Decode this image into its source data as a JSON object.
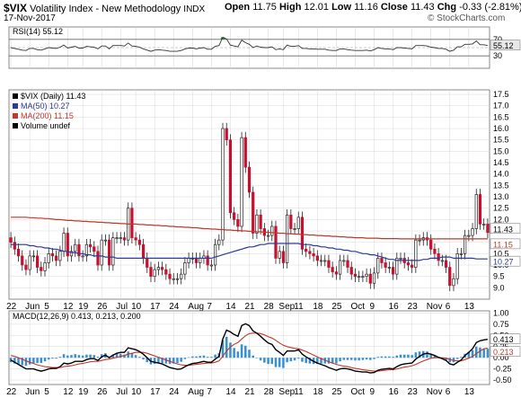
{
  "header": {
    "symbol": "$VIX",
    "name": "Volatility Index - New Methodology",
    "exchange": "INDX",
    "date": "17-Nov-2017",
    "open_label": "Open",
    "open": "11.75",
    "high_label": "High",
    "high": "12.01",
    "low_label": "Low",
    "low": "11.16",
    "close_label": "Close",
    "close": "11.43",
    "chg_label": "Chg",
    "chg": "-0.33 (-2.81%)",
    "credit": "© StockCharts.com"
  },
  "rsi_panel": {
    "label": "RSI(14)",
    "value": "55.12",
    "levels": [
      "70",
      "30"
    ],
    "value_tag": "55.12"
  },
  "price_panel": {
    "legend": [
      {
        "text": "$VIX (Daily) 11.43",
        "color": "#000000"
      },
      {
        "text": "MA(50) 10.27",
        "color": "#2b3a9b"
      },
      {
        "text": "MA(200) 11.15",
        "color": "#c0392b"
      },
      {
        "text": "Volume undef",
        "color": "#000000"
      }
    ],
    "yticks": [
      "17.5",
      "17.0",
      "16.5",
      "16.0",
      "15.5",
      "15.0",
      "14.5",
      "14.0",
      "13.5",
      "13.0",
      "12.5",
      "12.0",
      "11.5",
      "11.0",
      "10.5",
      "10.0",
      "9.5",
      "9.0"
    ],
    "tags": [
      "11.43",
      "11.15",
      "10.27"
    ]
  },
  "macd_panel": {
    "label": "MACD(12,26,9)",
    "macd": "0.413",
    "signal": "0.213",
    "hist": "0.200",
    "yticks": [
      "1.00",
      "0.75",
      "0.50",
      "0.25",
      "0.00",
      "-0.25",
      "-0.50"
    ],
    "tags": [
      "0.413",
      "0.213"
    ]
  },
  "xaxis_labels": [
    "22",
    "Jun",
    "5",
    "12",
    "19",
    "26",
    "Jul",
    "10",
    "17",
    "24",
    "Aug",
    "7",
    "14",
    "21",
    "28",
    "Sep",
    "11",
    "18",
    "25",
    "Oct",
    "9",
    "16",
    "23",
    "Nov",
    "6",
    "13"
  ],
  "colors": {
    "up": "#ffffff",
    "down": "#c8102e",
    "ma50": "#2b3a9b",
    "ma200": "#c0392b",
    "hist": "#3a8fd0",
    "rsi_fill": "#2e8b3a",
    "grid": "#d9d9d9"
  },
  "chart_data": {
    "type": "candlestick",
    "title": "$VIX Volatility Index - New Methodology INDX",
    "x": [
      "May-22",
      "May-23",
      "May-24",
      "May-25",
      "May-26",
      "May-30",
      "May-31",
      "Jun-01",
      "Jun-02",
      "Jun-05",
      "Jun-06",
      "Jun-07",
      "Jun-08",
      "Jun-09",
      "Jun-12",
      "Jun-13",
      "Jun-14",
      "Jun-15",
      "Jun-16",
      "Jun-19",
      "Jun-20",
      "Jun-21",
      "Jun-22",
      "Jun-23",
      "Jun-26",
      "Jun-27",
      "Jun-28",
      "Jun-29",
      "Jun-30",
      "Jul-03",
      "Jul-05",
      "Jul-06",
      "Jul-07",
      "Jul-10",
      "Jul-11",
      "Jul-12",
      "Jul-13",
      "Jul-14",
      "Jul-17",
      "Jul-18",
      "Jul-19",
      "Jul-20",
      "Jul-21",
      "Jul-24",
      "Jul-25",
      "Jul-26",
      "Jul-27",
      "Jul-28",
      "Jul-31",
      "Aug-01",
      "Aug-02",
      "Aug-03",
      "Aug-04",
      "Aug-07",
      "Aug-08",
      "Aug-09",
      "Aug-10",
      "Aug-11",
      "Aug-14",
      "Aug-15",
      "Aug-16",
      "Aug-17",
      "Aug-18",
      "Aug-21",
      "Aug-22",
      "Aug-23",
      "Aug-24",
      "Aug-25",
      "Aug-28",
      "Aug-29",
      "Aug-30",
      "Aug-31",
      "Sep-01",
      "Sep-05",
      "Sep-06",
      "Sep-07",
      "Sep-08",
      "Sep-11",
      "Sep-12",
      "Sep-13",
      "Sep-14",
      "Sep-15",
      "Sep-18",
      "Sep-19",
      "Sep-20",
      "Sep-21",
      "Sep-22",
      "Sep-25",
      "Sep-26",
      "Sep-27",
      "Sep-28",
      "Sep-29",
      "Oct-02",
      "Oct-03",
      "Oct-04",
      "Oct-05",
      "Oct-06",
      "Oct-09",
      "Oct-10",
      "Oct-11",
      "Oct-12",
      "Oct-13",
      "Oct-16",
      "Oct-17",
      "Oct-18",
      "Oct-19",
      "Oct-20",
      "Oct-23",
      "Oct-24",
      "Oct-25",
      "Oct-26",
      "Oct-27",
      "Oct-30",
      "Oct-31",
      "Nov-01",
      "Nov-02",
      "Nov-03",
      "Nov-06",
      "Nov-07",
      "Nov-08",
      "Nov-09",
      "Nov-10",
      "Nov-13",
      "Nov-14",
      "Nov-15",
      "Nov-16",
      "Nov-17"
    ],
    "close": [
      11.0,
      10.7,
      10.4,
      10.0,
      9.8,
      10.4,
      10.4,
      9.9,
      9.75,
      10.1,
      10.5,
      10.4,
      10.2,
      10.6,
      11.4,
      10.4,
      10.6,
      10.9,
      10.4,
      10.4,
      10.9,
      10.8,
      10.6,
      10.0,
      11.1,
      11.1,
      10.0,
      11.2,
      11.2,
      11.2,
      11.1,
      12.5,
      11.2,
      11.1,
      10.9,
      10.3,
      9.9,
      9.5,
      9.8,
      9.9,
      9.8,
      9.6,
      9.4,
      9.4,
      9.4,
      9.6,
      10.1,
      10.3,
      10.3,
      10.1,
      10.3,
      10.4,
      10.0,
      10.0,
      10.9,
      11.1,
      16.0,
      15.5,
      12.3,
      12.0,
      11.7,
      15.6,
      14.3,
      13.2,
      11.4,
      12.2,
      11.6,
      11.3,
      11.3,
      11.7,
      10.3,
      10.6,
      10.1,
      12.2,
      11.6,
      11.6,
      12.1,
      10.7,
      10.6,
      10.5,
      10.4,
      10.2,
      10.2,
      10.2,
      9.9,
      9.7,
      9.6,
      10.2,
      10.2,
      9.9,
      9.6,
      9.5,
      9.5,
      9.5,
      9.6,
      9.2,
      9.65,
      10.3,
      10.1,
      9.9,
      9.9,
      9.6,
      10.3,
      10.3,
      10.1,
      10.0,
      9.9,
      11.1,
      11.1,
      11.2,
      11.1,
      10.7,
      10.5,
      10.2,
      10.2,
      9.9,
      9.1,
      9.4,
      10.5,
      10.5,
      11.3,
      11.3,
      11.6,
      13.1,
      11.8,
      11.8,
      11.43
    ],
    "ma50": [
      10.9,
      10.9,
      10.9,
      10.9,
      10.9,
      10.85,
      10.85,
      10.8,
      10.8,
      10.75,
      10.75,
      10.7,
      10.7,
      10.65,
      10.6,
      10.6,
      10.55,
      10.55,
      10.5,
      10.5,
      10.45,
      10.45,
      10.4,
      10.4,
      10.4,
      10.35,
      10.35,
      10.35,
      10.3,
      10.3,
      10.3,
      10.3,
      10.3,
      10.3,
      10.3,
      10.3,
      10.3,
      10.3,
      10.3,
      10.3,
      10.3,
      10.3,
      10.3,
      10.3,
      10.3,
      10.3,
      10.3,
      10.3,
      10.3,
      10.3,
      10.3,
      10.3,
      10.3,
      10.3,
      10.35,
      10.4,
      10.45,
      10.5,
      10.55,
      10.6,
      10.65,
      10.7,
      10.75,
      10.8,
      10.8,
      10.85,
      10.9,
      10.9,
      10.95,
      10.95,
      10.95,
      10.95,
      10.95,
      10.95,
      10.95,
      10.95,
      10.95,
      10.9,
      10.9,
      10.9,
      10.85,
      10.85,
      10.8,
      10.8,
      10.75,
      10.75,
      10.7,
      10.7,
      10.65,
      10.65,
      10.6,
      10.6,
      10.55,
      10.5,
      10.5,
      10.45,
      10.45,
      10.4,
      10.35,
      10.3,
      10.25,
      10.25,
      10.2,
      10.2,
      10.2,
      10.2,
      10.2,
      10.2,
      10.2,
      10.25,
      10.25,
      10.3,
      10.3,
      10.3,
      10.35,
      10.35,
      10.35,
      10.3,
      10.3,
      10.3,
      10.3,
      10.3,
      10.3,
      10.27,
      10.27,
      10.27,
      10.27
    ],
    "ma200": [
      12.1,
      12.1,
      12.1,
      12.1,
      12.1,
      12.08,
      12.08,
      12.06,
      12.06,
      12.04,
      12.04,
      12.02,
      12.0,
      12.0,
      11.98,
      11.96,
      11.96,
      11.94,
      11.94,
      11.92,
      11.92,
      11.9,
      11.9,
      11.88,
      11.88,
      11.86,
      11.86,
      11.84,
      11.84,
      11.82,
      11.82,
      11.8,
      11.8,
      11.8,
      11.78,
      11.78,
      11.76,
      11.76,
      11.74,
      11.74,
      11.72,
      11.72,
      11.7,
      11.7,
      11.68,
      11.68,
      11.66,
      11.66,
      11.64,
      11.64,
      11.62,
      11.6,
      11.6,
      11.58,
      11.58,
      11.56,
      11.56,
      11.54,
      11.54,
      11.52,
      11.52,
      11.5,
      11.5,
      11.48,
      11.48,
      11.46,
      11.46,
      11.44,
      11.44,
      11.42,
      11.42,
      11.4,
      11.4,
      11.38,
      11.38,
      11.36,
      11.36,
      11.34,
      11.34,
      11.32,
      11.32,
      11.3,
      11.3,
      11.28,
      11.28,
      11.26,
      11.26,
      11.24,
      11.24,
      11.22,
      11.22,
      11.2,
      11.2,
      11.2,
      11.18,
      11.18,
      11.18,
      11.18,
      11.16,
      11.16,
      11.16,
      11.16,
      11.16,
      11.15,
      11.15,
      11.15,
      11.15,
      11.15,
      11.15,
      11.15,
      11.15,
      11.15,
      11.15,
      11.15,
      11.15,
      11.15,
      11.15,
      11.15,
      11.15,
      11.15,
      11.15,
      11.15,
      11.15,
      11.15,
      11.15,
      11.15,
      11.15
    ],
    "rsi": [
      50,
      48,
      46,
      44,
      43,
      48,
      48,
      45,
      44,
      47,
      50,
      49,
      48,
      51,
      56,
      49,
      51,
      53,
      49,
      49,
      53,
      52,
      51,
      47,
      54,
      54,
      47,
      55,
      55,
      55,
      54,
      61,
      54,
      53,
      51,
      47,
      44,
      41,
      44,
      45,
      44,
      43,
      41,
      41,
      41,
      43,
      47,
      49,
      49,
      47,
      49,
      50,
      46,
      46,
      53,
      55,
      75,
      71,
      56,
      54,
      52,
      68,
      62,
      58,
      50,
      54,
      51,
      50,
      50,
      52,
      45,
      47,
      45,
      56,
      53,
      53,
      55,
      48,
      48,
      47,
      47,
      46,
      46,
      46,
      44,
      43,
      43,
      47,
      47,
      45,
      44,
      43,
      43,
      43,
      44,
      42,
      45,
      50,
      48,
      47,
      47,
      45,
      50,
      50,
      49,
      48,
      47,
      55,
      55,
      55,
      54,
      51,
      50,
      48,
      48,
      46,
      41,
      44,
      52,
      52,
      58,
      58,
      59,
      66,
      57,
      57,
      55.12
    ],
    "macd": [
      -0.05,
      -0.1,
      -0.15,
      -0.2,
      -0.25,
      -0.25,
      -0.25,
      -0.28,
      -0.3,
      -0.28,
      -0.25,
      -0.24,
      -0.24,
      -0.2,
      -0.12,
      -0.14,
      -0.12,
      -0.08,
      -0.08,
      -0.08,
      -0.04,
      -0.02,
      -0.02,
      -0.06,
      0.02,
      0.06,
      0.0,
      0.06,
      0.1,
      0.12,
      0.12,
      0.22,
      0.2,
      0.18,
      0.14,
      0.08,
      0.0,
      -0.08,
      -0.1,
      -0.12,
      -0.14,
      -0.18,
      -0.22,
      -0.24,
      -0.26,
      -0.25,
      -0.2,
      -0.16,
      -0.13,
      -0.12,
      -0.1,
      -0.08,
      -0.1,
      -0.1,
      -0.03,
      0.03,
      0.42,
      0.62,
      0.58,
      0.52,
      0.48,
      0.72,
      0.76,
      0.72,
      0.6,
      0.55,
      0.48,
      0.4,
      0.33,
      0.3,
      0.18,
      0.12,
      0.05,
      0.15,
      0.15,
      0.15,
      0.18,
      0.08,
      0.02,
      -0.03,
      -0.08,
      -0.12,
      -0.15,
      -0.18,
      -0.22,
      -0.25,
      -0.28,
      -0.25,
      -0.24,
      -0.25,
      -0.27,
      -0.3,
      -0.31,
      -0.32,
      -0.32,
      -0.34,
      -0.33,
      -0.28,
      -0.26,
      -0.25,
      -0.24,
      -0.25,
      -0.2,
      -0.16,
      -0.14,
      -0.13,
      -0.12,
      -0.03,
      0.03,
      0.08,
      0.1,
      0.08,
      0.05,
      0.01,
      -0.02,
      -0.06,
      -0.14,
      -0.16,
      -0.1,
      -0.05,
      0.05,
      0.12,
      0.2,
      0.34,
      0.38,
      0.4,
      0.413
    ],
    "signal": [
      0.05,
      0.03,
      0.0,
      -0.03,
      -0.07,
      -0.1,
      -0.13,
      -0.16,
      -0.18,
      -0.2,
      -0.21,
      -0.22,
      -0.22,
      -0.22,
      -0.2,
      -0.19,
      -0.18,
      -0.16,
      -0.14,
      -0.13,
      -0.11,
      -0.09,
      -0.08,
      -0.08,
      -0.06,
      -0.04,
      -0.03,
      -0.01,
      0.01,
      0.03,
      0.05,
      0.08,
      0.1,
      0.12,
      0.12,
      0.12,
      0.1,
      0.07,
      0.04,
      0.01,
      -0.02,
      -0.05,
      -0.08,
      -0.11,
      -0.14,
      -0.16,
      -0.17,
      -0.17,
      -0.16,
      -0.15,
      -0.14,
      -0.13,
      -0.12,
      -0.12,
      -0.1,
      -0.07,
      0.03,
      0.15,
      0.24,
      0.3,
      0.34,
      0.42,
      0.49,
      0.54,
      0.55,
      0.55,
      0.54,
      0.51,
      0.47,
      0.44,
      0.39,
      0.33,
      0.28,
      0.25,
      0.23,
      0.21,
      0.2,
      0.17,
      0.14,
      0.1,
      0.06,
      0.02,
      -0.02,
      -0.05,
      -0.09,
      -0.12,
      -0.15,
      -0.17,
      -0.19,
      -0.2,
      -0.22,
      -0.24,
      -0.25,
      -0.27,
      -0.28,
      -0.29,
      -0.3,
      -0.3,
      -0.29,
      -0.28,
      -0.27,
      -0.27,
      -0.25,
      -0.23,
      -0.21,
      -0.2,
      -0.18,
      -0.15,
      -0.11,
      -0.07,
      -0.04,
      -0.01,
      0.0,
      0.0,
      0.0,
      -0.01,
      -0.04,
      -0.06,
      -0.07,
      -0.07,
      -0.04,
      -0.01,
      0.03,
      0.09,
      0.15,
      0.2,
      0.213
    ]
  }
}
